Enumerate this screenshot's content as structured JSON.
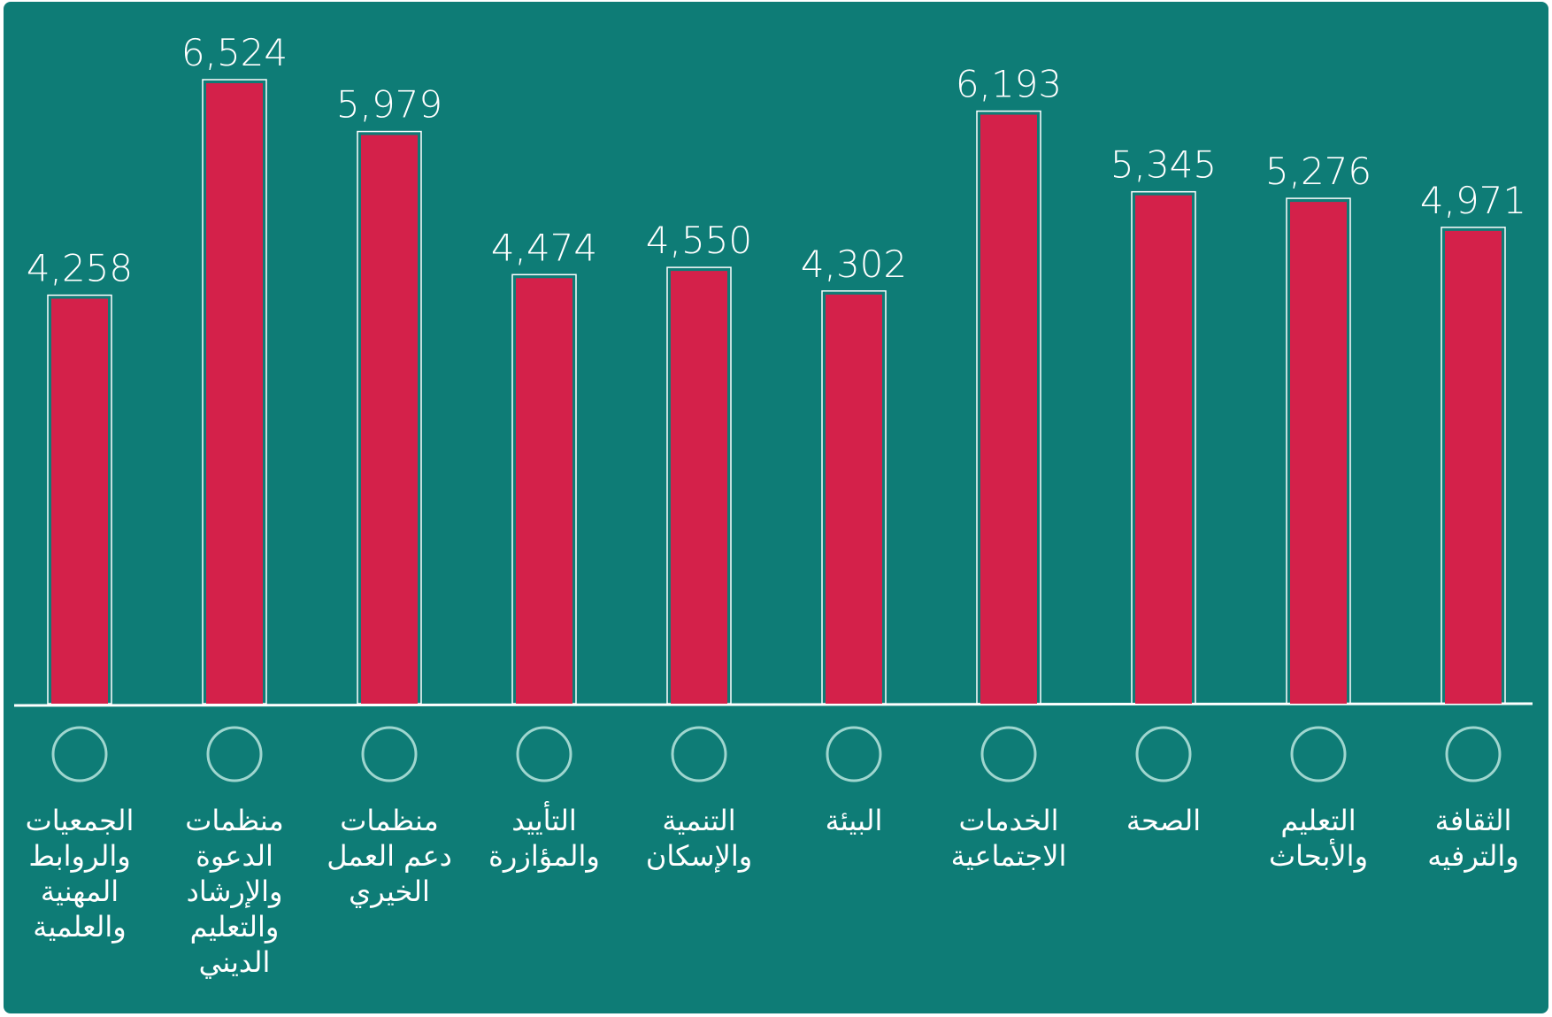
{
  "chart_data": {
    "type": "bar",
    "categories": [
      "الجمعيات والروابط المهنية والعلمية",
      "منظمات الدعوة والإرشاد والتعليم الديني",
      "منظمات دعم العمل الخيري",
      "التأييد والمؤازرة",
      "التنمية والإسكان",
      "البيئة",
      "الخدمات الاجتماعية",
      "الصحة",
      "التعليم والأبحاث",
      "الثقافة والترفيه"
    ],
    "values": [
      4258,
      6524,
      5979,
      4474,
      4550,
      4302,
      6193,
      5345,
      5276,
      4971
    ],
    "value_labels": [
      "4,258",
      "6,524",
      "5,979",
      "4,474",
      "4,550",
      "4,302",
      "6,193",
      "5,345",
      "5,276",
      "4,971"
    ],
    "color": "#d4214a"
  }
}
